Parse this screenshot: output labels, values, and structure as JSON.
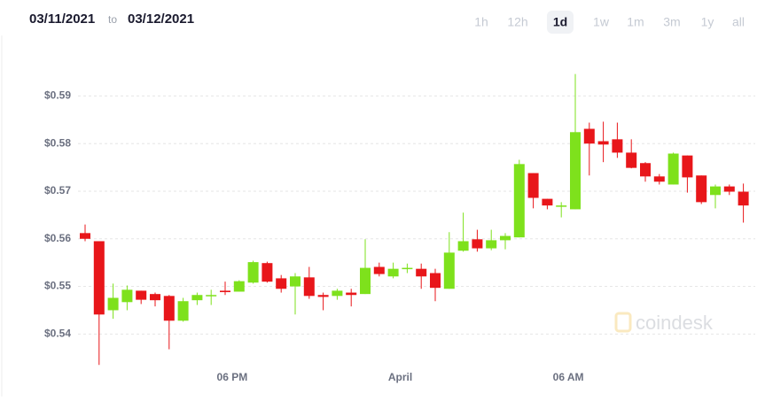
{
  "header": {
    "from": "03/11/2021",
    "to_word": "to",
    "to": "03/12/2021"
  },
  "ranges": [
    "1h",
    "12h",
    "1d",
    "1w",
    "1m",
    "3m",
    "1y",
    "all"
  ],
  "selected_range": 2,
  "watermark": "coindesk",
  "chart_data": {
    "type": "candlestick",
    "up_color": "#7ee11c",
    "down_color": "#e8161a",
    "grid": true,
    "ylim": [
      0.533,
      0.599
    ],
    "yticks": [
      {
        "value": 0.54,
        "label": "$0.54"
      },
      {
        "value": 0.55,
        "label": "$0.55"
      },
      {
        "value": 0.56,
        "label": "$0.56"
      },
      {
        "value": 0.57,
        "label": "$0.57"
      },
      {
        "value": 0.58,
        "label": "$0.58"
      },
      {
        "value": 0.59,
        "label": "$0.59"
      }
    ],
    "xlim": [
      -1,
      47.7
    ],
    "xticks": [
      {
        "value": 10.5,
        "label": "06 PM"
      },
      {
        "value": 22.5,
        "label": "April"
      },
      {
        "value": 34.5,
        "label": "06 AM"
      }
    ],
    "open": [
      0.5612,
      0.5595,
      0.545,
      0.5467,
      0.5491,
      0.5484,
      0.548,
      0.5428,
      0.5471,
      0.548,
      0.5491,
      0.5489,
      0.5508,
      0.5549,
      0.5517,
      0.55,
      0.5519,
      0.5482,
      0.548,
      0.5487,
      0.5484,
      0.5541,
      0.5521,
      0.5537,
      0.5537,
      0.5528,
      0.5495,
      0.5575,
      0.5599,
      0.558,
      0.5597,
      0.5603,
      0.5738,
      0.5684,
      0.5668,
      0.5662,
      0.5831,
      0.5805,
      0.5809,
      0.5781,
      0.5759,
      0.5731,
      0.5714,
      0.5775,
      0.5733,
      0.5692,
      0.571,
      0.5699
    ],
    "high": [
      0.563,
      0.5595,
      0.5506,
      0.5502,
      0.5491,
      0.5487,
      0.5482,
      0.5476,
      0.5487,
      0.5493,
      0.551,
      0.5513,
      0.5554,
      0.5552,
      0.5524,
      0.5528,
      0.5541,
      0.5487,
      0.5495,
      0.5495,
      0.5599,
      0.555,
      0.555,
      0.5548,
      0.5548,
      0.5537,
      0.5614,
      0.5655,
      0.5619,
      0.5619,
      0.5612,
      0.5766,
      0.5738,
      0.5684,
      0.5677,
      0.5946,
      0.5844,
      0.5846,
      0.5844,
      0.5809,
      0.5761,
      0.5736,
      0.5781,
      0.5775,
      0.5733,
      0.5714,
      0.5714,
      0.5716
    ],
    "low": [
      0.5595,
      0.5335,
      0.5432,
      0.545,
      0.5463,
      0.5458,
      0.5368,
      0.5426,
      0.5461,
      0.5461,
      0.5482,
      0.5489,
      0.5506,
      0.5508,
      0.5487,
      0.5441,
      0.5474,
      0.545,
      0.5472,
      0.5458,
      0.5484,
      0.5521,
      0.5517,
      0.5528,
      0.5495,
      0.5469,
      0.5495,
      0.5573,
      0.5573,
      0.5576,
      0.5578,
      0.5603,
      0.5664,
      0.5662,
      0.5645,
      0.5662,
      0.5733,
      0.5761,
      0.577,
      0.5748,
      0.572,
      0.5714,
      0.5714,
      0.5697,
      0.5673,
      0.5664,
      0.5692,
      0.5634
    ],
    "close": [
      0.56,
      0.5441,
      0.5476,
      0.5493,
      0.5472,
      0.5471,
      0.5428,
      0.5469,
      0.5482,
      0.5482,
      0.5488,
      0.5511,
      0.5551,
      0.551,
      0.5495,
      0.5521,
      0.548,
      0.5478,
      0.5491,
      0.5482,
      0.5539,
      0.5526,
      0.5537,
      0.5539,
      0.5521,
      0.5497,
      0.5571,
      0.5595,
      0.558,
      0.5597,
      0.5606,
      0.5757,
      0.5686,
      0.567,
      0.567,
      0.5824,
      0.58,
      0.5798,
      0.5781,
      0.5749,
      0.5731,
      0.572,
      0.5779,
      0.5729,
      0.5677,
      0.571,
      0.5699,
      0.567
    ]
  }
}
